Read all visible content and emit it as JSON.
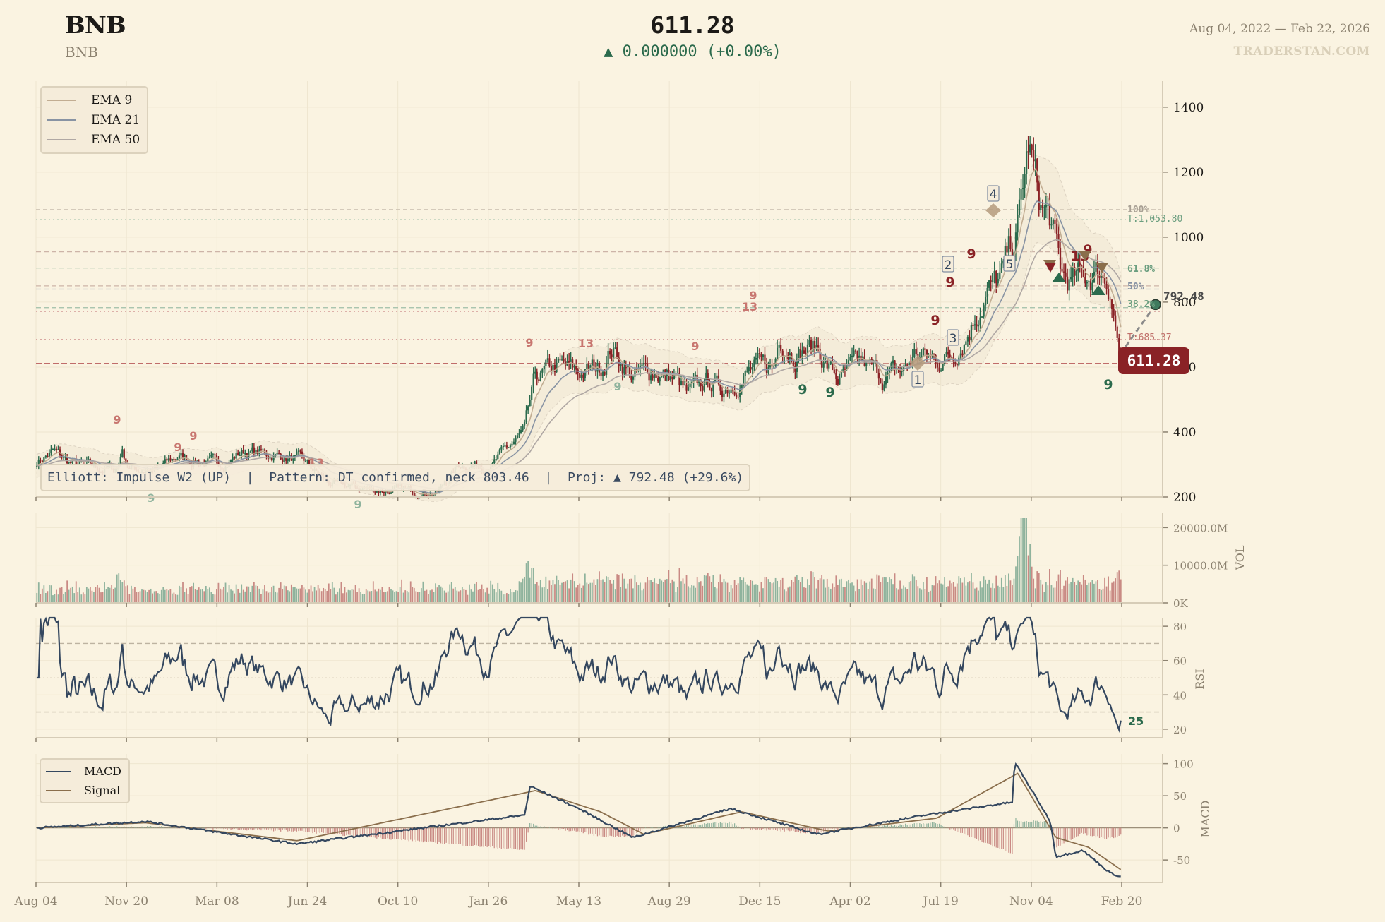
{
  "header": {
    "symbol": "BNB",
    "subtitle": "BNB",
    "price": "611.28",
    "change": "▲ 0.000000 (+0.00%)",
    "date_range": "Aug 04, 2022 — Feb 22, 2026",
    "brand": "TRADERSTAN.COM"
  },
  "colors": {
    "background": "#faf3e1",
    "up": "#2b6a4c",
    "down": "#8a2226",
    "ema9": "#c2ad92",
    "ema21": "#8893a3",
    "ema50": "#b0a8a4",
    "macd": "#34475f",
    "signal": "#8a6e4c",
    "rsi": "#34475f"
  },
  "legend_ema": {
    "items": [
      {
        "label": "EMA 9",
        "color": "#c2ad92"
      },
      {
        "label": "EMA 21",
        "color": "#8893a3"
      },
      {
        "label": "EMA 50",
        "color": "#b0a8a4"
      }
    ]
  },
  "legend_macd": {
    "items": [
      {
        "label": "MACD",
        "color": "#34475f"
      },
      {
        "label": "Signal",
        "color": "#8a6e4c"
      }
    ]
  },
  "info_box": {
    "elliott": "Elliott: Impulse W2 (UP)",
    "separator": "  |  ",
    "pattern": "Pattern: DT confirmed, neck 803.46",
    "projection": "Proj: ▲ 792.48 (+29.6%)"
  },
  "price_tag": "611.28",
  "projection_label": "792.48",
  "rsi_last_label": "25",
  "fib_labels": {
    "f100": "100%",
    "target_up": "T:1,053.80",
    "f618": "61.8%",
    "f50": "50%",
    "f382": "38.2%",
    "target_down": "T:685.37"
  },
  "elliott_waves": [
    "1",
    "2",
    "3",
    "4",
    "5"
  ],
  "axes": {
    "vol_label": "VOL",
    "rsi_label": "RSI",
    "macd_label": "MACD"
  },
  "chart_data": [
    {
      "type": "candlestick",
      "title": "BNB",
      "ylim": [
        200,
        1480
      ],
      "yticks": [
        200,
        400,
        600,
        800,
        1000,
        1200,
        1400
      ],
      "x_tick_labels": [
        "Aug 04",
        "Nov 20",
        "Mar 08",
        "Jun 24",
        "Oct 10",
        "Jan 26",
        "May 13",
        "Aug 29",
        "Dec 15",
        "Apr 02",
        "Jul 19",
        "Nov 04",
        "Feb 20"
      ],
      "close_path": [
        {
          "t": 0,
          "v": 310
        },
        {
          "t": 0.015,
          "v": 340
        },
        {
          "t": 0.03,
          "v": 305
        },
        {
          "t": 0.06,
          "v": 285
        },
        {
          "t": 0.075,
          "v": 290
        },
        {
          "t": 0.078,
          "v": 350
        },
        {
          "t": 0.085,
          "v": 290
        },
        {
          "t": 0.11,
          "v": 280
        },
        {
          "t": 0.13,
          "v": 325
        },
        {
          "t": 0.15,
          "v": 310
        },
        {
          "t": 0.17,
          "v": 300
        },
        {
          "t": 0.19,
          "v": 340
        },
        {
          "t": 0.22,
          "v": 330
        },
        {
          "t": 0.245,
          "v": 310
        },
        {
          "t": 0.27,
          "v": 240
        },
        {
          "t": 0.31,
          "v": 222
        },
        {
          "t": 0.37,
          "v": 215
        },
        {
          "t": 0.39,
          "v": 300
        },
        {
          "t": 0.42,
          "v": 300
        },
        {
          "t": 0.45,
          "v": 400
        },
        {
          "t": 0.46,
          "v": 560
        },
        {
          "t": 0.48,
          "v": 600
        },
        {
          "t": 0.5,
          "v": 580
        },
        {
          "t": 0.52,
          "v": 600
        },
        {
          "t": 0.53,
          "v": 660
        },
        {
          "t": 0.55,
          "v": 570
        },
        {
          "t": 0.57,
          "v": 590
        },
        {
          "t": 0.59,
          "v": 560
        },
        {
          "t": 0.6,
          "v": 510
        },
        {
          "t": 0.62,
          "v": 560
        },
        {
          "t": 0.63,
          "v": 530
        },
        {
          "t": 0.66,
          "v": 590
        },
        {
          "t": 0.68,
          "v": 600
        },
        {
          "t": 0.685,
          "v": 700
        },
        {
          "t": 0.7,
          "v": 650
        },
        {
          "t": 0.72,
          "v": 660
        },
        {
          "t": 0.73,
          "v": 600
        },
        {
          "t": 0.74,
          "v": 560
        },
        {
          "t": 0.76,
          "v": 610
        },
        {
          "t": 0.78,
          "v": 570
        },
        {
          "t": 0.8,
          "v": 590
        },
        {
          "t": 0.81,
          "v": 640
        },
        {
          "t": 0.83,
          "v": 620
        },
        {
          "t": 0.845,
          "v": 640
        },
        {
          "t": 0.86,
          "v": 720
        },
        {
          "t": 0.875,
          "v": 830
        },
        {
          "t": 0.89,
          "v": 870
        },
        {
          "t": 0.905,
          "v": 1030
        },
        {
          "t": 0.915,
          "v": 1280
        },
        {
          "t": 0.925,
          "v": 1100
        },
        {
          "t": 0.935,
          "v": 1050
        },
        {
          "t": 0.945,
          "v": 880
        },
        {
          "t": 0.955,
          "v": 860
        },
        {
          "t": 0.965,
          "v": 870
        },
        {
          "t": 0.98,
          "v": 900
        },
        {
          "t": 0.99,
          "v": 860
        },
        {
          "t": 1.0,
          "v": 611.28
        }
      ],
      "last_close": 611.28,
      "horizontal_levels": {
        "fib_100": 1085,
        "target_up": 1053.8,
        "level_960": 955,
        "fib_618": 905,
        "level_850": 850,
        "fib_50": 840,
        "fib_382": 783,
        "target_down": 685.37,
        "current": 611.28
      },
      "projection": {
        "to": 792.48,
        "pct": "+29.6%"
      }
    },
    {
      "type": "bar",
      "title": "Volume",
      "ylabel": "VOL",
      "yticks": [
        "0K",
        "10000.0M",
        "20000.0M"
      ],
      "ylim": [
        0,
        24000
      ],
      "spike_points": [
        {
          "t": 0.075,
          "v": 8500
        },
        {
          "t": 0.45,
          "v": 11000
        },
        {
          "t": 0.91,
          "v": 22000
        }
      ]
    },
    {
      "type": "line",
      "title": "RSI",
      "ylabel": "RSI",
      "yticks": [
        20,
        40,
        60,
        80
      ],
      "ylim": [
        15,
        85
      ],
      "overbought": 70,
      "oversold": 30,
      "last_value": 25
    },
    {
      "type": "line",
      "title": "MACD",
      "ylabel": "MACD",
      "yticks": [
        -50,
        0,
        50,
        100
      ],
      "ylim": [
        -85,
        115
      ],
      "series": [
        {
          "name": "MACD",
          "key_points": [
            {
              "t": 0,
              "v": 0
            },
            {
              "t": 0.1,
              "v": 10
            },
            {
              "t": 0.24,
              "v": -25
            },
            {
              "t": 0.45,
              "v": 20
            },
            {
              "t": 0.455,
              "v": 65
            },
            {
              "t": 0.5,
              "v": 30
            },
            {
              "t": 0.55,
              "v": -15
            },
            {
              "t": 0.64,
              "v": 30
            },
            {
              "t": 0.72,
              "v": -10
            },
            {
              "t": 0.82,
              "v": 20
            },
            {
              "t": 0.9,
              "v": 40
            },
            {
              "t": 0.902,
              "v": 103
            },
            {
              "t": 0.935,
              "v": 10
            },
            {
              "t": 0.94,
              "v": -45
            },
            {
              "t": 0.965,
              "v": -35
            },
            {
              "t": 0.99,
              "v": -70
            },
            {
              "t": 1.0,
              "v": -76
            }
          ]
        },
        {
          "name": "Signal",
          "key_points": [
            {
              "t": 0,
              "v": 0
            },
            {
              "t": 0.1,
              "v": 8
            },
            {
              "t": 0.24,
              "v": -20
            },
            {
              "t": 0.46,
              "v": 58
            },
            {
              "t": 0.52,
              "v": 25
            },
            {
              "t": 0.56,
              "v": -10
            },
            {
              "t": 0.65,
              "v": 25
            },
            {
              "t": 0.73,
              "v": -5
            },
            {
              "t": 0.83,
              "v": 15
            },
            {
              "t": 0.905,
              "v": 85
            },
            {
              "t": 0.94,
              "v": -15
            },
            {
              "t": 0.97,
              "v": -30
            },
            {
              "t": 1.0,
              "v": -65
            }
          ]
        }
      ]
    }
  ]
}
